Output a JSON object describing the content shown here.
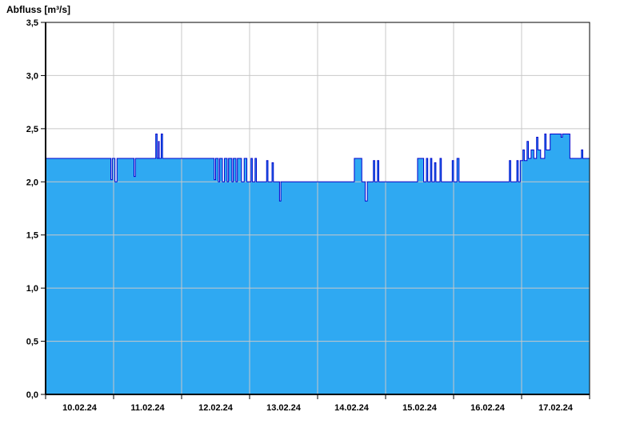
{
  "chart_data": {
    "type": "area",
    "title": "Abfluss [m³/s]",
    "ylabel": "Abfluss [m³/s]",
    "xlabel": "",
    "ylim": [
      0,
      3.5
    ],
    "x_domain": [
      0,
      8
    ],
    "grid": true,
    "legend_position": "none",
    "x_tick_labels": [
      "10.02.24",
      "11.02.24",
      "12.02.24",
      "13.02.24",
      "14.02.24",
      "15.02.24",
      "16.02.24",
      "17.02.24"
    ],
    "y_tick_labels": [
      "0,0",
      "0,5",
      "1,0",
      "1,5",
      "2,0",
      "2,5",
      "3,0",
      "3,5"
    ],
    "y_tick_values": [
      0,
      0.5,
      1.0,
      1.5,
      2.0,
      2.5,
      3.0,
      3.5
    ],
    "colors": {
      "fill": "#2FA9F2",
      "line": "#0000CD",
      "grid": "#C8C8C8",
      "axis": "#000000",
      "background": "#FFFFFF"
    },
    "series": [
      {
        "name": "Abfluss",
        "unit": "m³/s",
        "points": [
          [
            0.0,
            2.22
          ],
          [
            0.96,
            2.22
          ],
          [
            0.96,
            2.02
          ],
          [
            0.98,
            2.02
          ],
          [
            0.98,
            2.22
          ],
          [
            1.02,
            2.22
          ],
          [
            1.02,
            2.0
          ],
          [
            1.05,
            2.0
          ],
          [
            1.05,
            2.22
          ],
          [
            1.3,
            2.22
          ],
          [
            1.3,
            2.05
          ],
          [
            1.32,
            2.05
          ],
          [
            1.32,
            2.22
          ],
          [
            1.62,
            2.22
          ],
          [
            1.62,
            2.45
          ],
          [
            1.64,
            2.45
          ],
          [
            1.64,
            2.22
          ],
          [
            1.66,
            2.22
          ],
          [
            1.66,
            2.38
          ],
          [
            1.67,
            2.38
          ],
          [
            1.67,
            2.22
          ],
          [
            1.7,
            2.22
          ],
          [
            1.7,
            2.45
          ],
          [
            1.72,
            2.45
          ],
          [
            1.72,
            2.22
          ],
          [
            2.48,
            2.22
          ],
          [
            2.48,
            2.02
          ],
          [
            2.5,
            2.02
          ],
          [
            2.5,
            2.22
          ],
          [
            2.54,
            2.22
          ],
          [
            2.54,
            2.0
          ],
          [
            2.56,
            2.0
          ],
          [
            2.56,
            2.22
          ],
          [
            2.6,
            2.22
          ],
          [
            2.6,
            2.0
          ],
          [
            2.63,
            2.0
          ],
          [
            2.63,
            2.22
          ],
          [
            2.67,
            2.22
          ],
          [
            2.67,
            2.0
          ],
          [
            2.69,
            2.0
          ],
          [
            2.69,
            2.22
          ],
          [
            2.74,
            2.22
          ],
          [
            2.74,
            2.0
          ],
          [
            2.76,
            2.0
          ],
          [
            2.76,
            2.22
          ],
          [
            2.8,
            2.22
          ],
          [
            2.8,
            2.0
          ],
          [
            2.82,
            2.0
          ],
          [
            2.82,
            2.22
          ],
          [
            2.88,
            2.22
          ],
          [
            2.88,
            2.0
          ],
          [
            2.92,
            2.0
          ],
          [
            2.92,
            2.22
          ],
          [
            2.96,
            2.22
          ],
          [
            2.96,
            2.0
          ],
          [
            3.02,
            2.0
          ],
          [
            3.02,
            2.22
          ],
          [
            3.04,
            2.22
          ],
          [
            3.04,
            2.0
          ],
          [
            3.08,
            2.0
          ],
          [
            3.08,
            2.22
          ],
          [
            3.1,
            2.22
          ],
          [
            3.1,
            2.0
          ],
          [
            3.25,
            2.0
          ],
          [
            3.25,
            2.2
          ],
          [
            3.27,
            2.2
          ],
          [
            3.27,
            2.0
          ],
          [
            3.33,
            2.0
          ],
          [
            3.33,
            2.18
          ],
          [
            3.35,
            2.18
          ],
          [
            3.35,
            2.0
          ],
          [
            3.44,
            2.0
          ],
          [
            3.44,
            1.82
          ],
          [
            3.46,
            1.82
          ],
          [
            3.46,
            2.0
          ],
          [
            4.54,
            2.0
          ],
          [
            4.54,
            2.22
          ],
          [
            4.65,
            2.22
          ],
          [
            4.65,
            2.0
          ],
          [
            4.7,
            2.0
          ],
          [
            4.7,
            1.82
          ],
          [
            4.73,
            1.82
          ],
          [
            4.73,
            2.0
          ],
          [
            4.82,
            2.0
          ],
          [
            4.82,
            2.2
          ],
          [
            4.84,
            2.2
          ],
          [
            4.84,
            2.0
          ],
          [
            4.88,
            2.0
          ],
          [
            4.88,
            2.2
          ],
          [
            4.9,
            2.2
          ],
          [
            4.9,
            2.0
          ],
          [
            5.47,
            2.0
          ],
          [
            5.47,
            2.22
          ],
          [
            5.56,
            2.22
          ],
          [
            5.56,
            2.0
          ],
          [
            5.6,
            2.0
          ],
          [
            5.6,
            2.22
          ],
          [
            5.62,
            2.22
          ],
          [
            5.62,
            2.0
          ],
          [
            5.66,
            2.0
          ],
          [
            5.66,
            2.22
          ],
          [
            5.68,
            2.22
          ],
          [
            5.68,
            2.0
          ],
          [
            5.72,
            2.0
          ],
          [
            5.72,
            2.18
          ],
          [
            5.74,
            2.18
          ],
          [
            5.74,
            2.0
          ],
          [
            5.8,
            2.0
          ],
          [
            5.8,
            2.22
          ],
          [
            5.82,
            2.22
          ],
          [
            5.82,
            2.0
          ],
          [
            5.98,
            2.0
          ],
          [
            5.98,
            2.2
          ],
          [
            6.0,
            2.2
          ],
          [
            6.0,
            2.0
          ],
          [
            6.05,
            2.0
          ],
          [
            6.05,
            2.22
          ],
          [
            6.08,
            2.22
          ],
          [
            6.08,
            2.0
          ],
          [
            6.82,
            2.0
          ],
          [
            6.82,
            2.2
          ],
          [
            6.84,
            2.2
          ],
          [
            6.84,
            2.0
          ],
          [
            6.93,
            2.0
          ],
          [
            6.93,
            2.2
          ],
          [
            6.95,
            2.2
          ],
          [
            6.95,
            2.0
          ],
          [
            6.98,
            2.0
          ],
          [
            6.98,
            2.2
          ],
          [
            7.02,
            2.2
          ],
          [
            7.02,
            2.3
          ],
          [
            7.04,
            2.3
          ],
          [
            7.04,
            2.2
          ],
          [
            7.08,
            2.2
          ],
          [
            7.08,
            2.38
          ],
          [
            7.1,
            2.38
          ],
          [
            7.1,
            2.22
          ],
          [
            7.14,
            2.22
          ],
          [
            7.14,
            2.3
          ],
          [
            7.18,
            2.3
          ],
          [
            7.18,
            2.22
          ],
          [
            7.22,
            2.22
          ],
          [
            7.22,
            2.42
          ],
          [
            7.24,
            2.42
          ],
          [
            7.24,
            2.3
          ],
          [
            7.28,
            2.3
          ],
          [
            7.28,
            2.22
          ],
          [
            7.34,
            2.22
          ],
          [
            7.34,
            2.45
          ],
          [
            7.36,
            2.45
          ],
          [
            7.36,
            2.3
          ],
          [
            7.42,
            2.3
          ],
          [
            7.42,
            2.45
          ],
          [
            7.58,
            2.45
          ],
          [
            7.58,
            2.42
          ],
          [
            7.6,
            2.42
          ],
          [
            7.6,
            2.45
          ],
          [
            7.71,
            2.45
          ],
          [
            7.71,
            2.22
          ],
          [
            7.88,
            2.22
          ],
          [
            7.88,
            2.3
          ],
          [
            7.9,
            2.3
          ],
          [
            7.9,
            2.22
          ],
          [
            8.0,
            2.22
          ]
        ]
      }
    ]
  }
}
